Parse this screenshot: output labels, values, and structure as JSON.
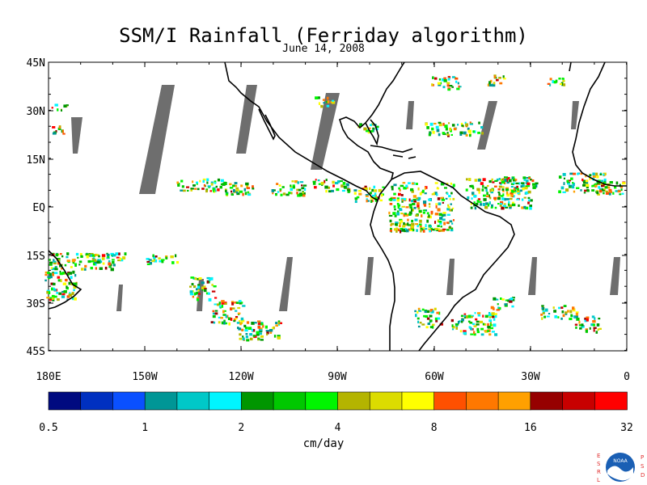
{
  "title": "SSM/I Rainfall (Ferriday algorithm)",
  "subtitle": "June 14, 2008",
  "lat_labels": [
    "45N",
    "30N",
    "15N",
    "EQ",
    "15S",
    "30S",
    "45S"
  ],
  "lon_labels": [
    "180E",
    "150W",
    "120W",
    "90W",
    "60W",
    "30W",
    "0"
  ],
  "colorbar": {
    "unit": "cm/day",
    "tick_labels": [
      "0.5",
      "1",
      "2",
      "4",
      "8",
      "16",
      "32"
    ],
    "colors": [
      "#000a80",
      "#0030c0",
      "#0a50ff",
      "#009696",
      "#00c8c8",
      "#00f5ff",
      "#009600",
      "#00c800",
      "#00f500",
      "#b4b400",
      "#dcdc00",
      "#ffff00",
      "#ff5000",
      "#ff7800",
      "#ffa000",
      "#960000",
      "#c80000",
      "#ff0000"
    ]
  },
  "logo": {
    "left_letters": "ESRL",
    "right_letters": "PSD",
    "badge": "NOAA"
  }
}
